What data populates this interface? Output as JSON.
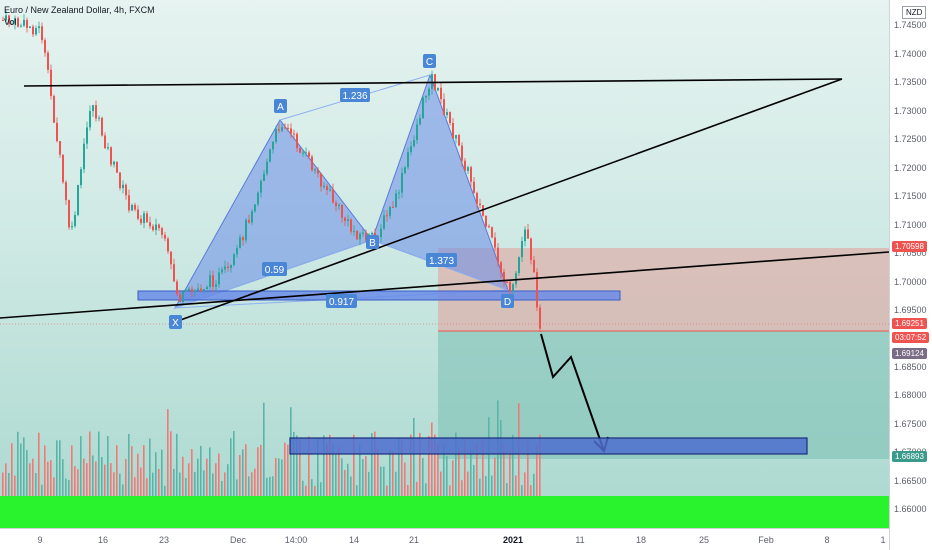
{
  "header": {
    "symbol_title": "Euro / New Zealand Dollar, 4h, FXCM",
    "volume_label": "Vol"
  },
  "price_axis": {
    "currency": "NZD",
    "ticks": [
      "1.74500",
      "1.74000",
      "1.73500",
      "1.73000",
      "1.72500",
      "1.72000",
      "1.71500",
      "1.71000",
      "1.70500",
      "1.70000",
      "1.69500",
      "1.69000",
      "1.68500",
      "1.68000",
      "1.67500",
      "1.67000",
      "1.66500",
      "1.66000"
    ],
    "badges": {
      "upper": "1.70598",
      "last": "1.69251",
      "countdown": "03:07:52",
      "lower": "1.69124",
      "target": "1.66893"
    }
  },
  "time_axis": {
    "ticks": [
      "9",
      "16",
      "23",
      "Dec",
      "14:00",
      "14",
      "21",
      "2021",
      "11",
      "18",
      "25",
      "Feb",
      "8",
      "1"
    ]
  },
  "pattern": {
    "points": {
      "x": "X",
      "a": "A",
      "b": "B",
      "c": "C",
      "d": "D"
    },
    "ratios": {
      "xa_xb": "0.59",
      "ab_ac": "1.236",
      "bc_cd": "1.373",
      "xd": "0.917"
    }
  },
  "colors": {
    "up_candle": "#26a69a",
    "down_candle": "#ef5350",
    "harmonic_fill": "#6a8ce8",
    "volume_bar_green": "#29f32c",
    "target_box": "#4f6fcf",
    "stop_zone": "#e1aaa5",
    "profit_zone": "#7fc2b5"
  }
}
